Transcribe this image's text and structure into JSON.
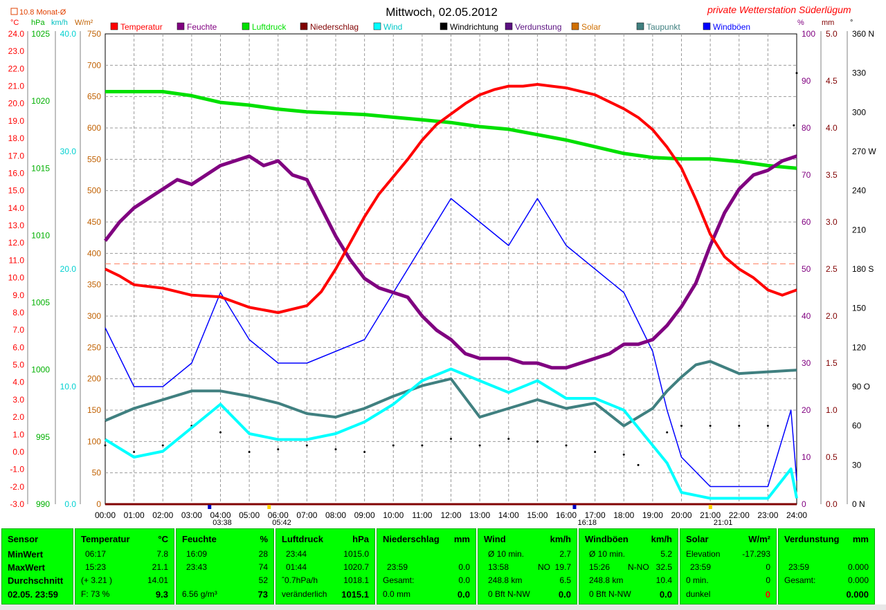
{
  "header": {
    "title": "Mittwoch, 02.05.2012",
    "station": "private Wetterstation Süderlügum",
    "monthly_avg": "10.8 Monat-Ø",
    "left_units": [
      "°C",
      "hPa",
      "km/h",
      "W/m²"
    ],
    "right_units": [
      "%",
      "mm",
      "°"
    ]
  },
  "legend": [
    {
      "label": "Temperatur",
      "color": "#ff0000"
    },
    {
      "label": "Feuchte",
      "color": "#800080"
    },
    {
      "label": "Luftdruck",
      "color": "#00e000"
    },
    {
      "label": "Niederschlag",
      "color": "#800000"
    },
    {
      "label": "Wind",
      "color": "#00ffff"
    },
    {
      "label": "Windrichtung",
      "color": "#000000"
    },
    {
      "label": "Verdunstung",
      "color": "#5a1080"
    },
    {
      "label": "Solar",
      "color": "#d07000"
    },
    {
      "label": "Taupunkt",
      "color": "#408080"
    },
    {
      "label": "Windböen",
      "color": "#0000ff"
    }
  ],
  "axes": {
    "temp_ticks": [
      "24.0",
      "23.0",
      "22.0",
      "21.0",
      "20.0",
      "19.0",
      "18.0",
      "17.0",
      "16.0",
      "15.0",
      "14.0",
      "13.0",
      "12.0",
      "11.0",
      "10.0",
      "9.0",
      "8.0",
      "7.0",
      "6.0",
      "5.0",
      "4.0",
      "3.0",
      "2.0",
      "1.0",
      "0.0",
      "-1.0",
      "-2.0",
      "-3.0"
    ],
    "hpa_ticks": [
      "1025",
      "1020",
      "1015",
      "1010",
      "1005",
      "1000",
      "995",
      "990"
    ],
    "kmh_ticks": [
      "40.0",
      "30.0",
      "20.0",
      "10.0",
      "0.0"
    ],
    "wm2_ticks": [
      "750",
      "700",
      "650",
      "600",
      "550",
      "500",
      "450",
      "400",
      "350",
      "300",
      "250",
      "200",
      "150",
      "100",
      "50",
      "0"
    ],
    "pct_ticks": [
      "100",
      "90",
      "80",
      "70",
      "60",
      "50",
      "40",
      "30",
      "20",
      "10",
      "0"
    ],
    "mm_ticks": [
      "5.0",
      "4.5",
      "4.0",
      "3.5",
      "3.0",
      "2.5",
      "2.0",
      "1.5",
      "1.0",
      "0.5",
      "0.0"
    ],
    "deg_ticks": [
      "360 N",
      "330",
      "300",
      "270 W",
      "240",
      "210",
      "180 S",
      "150",
      "120",
      "90 O",
      "60",
      "30",
      "0 N"
    ],
    "time_ticks": [
      "00:00",
      "01:00",
      "02:00",
      "03:00",
      "04:00",
      "05:00",
      "06:00",
      "07:00",
      "08:00",
      "09:00",
      "10:00",
      "11:00",
      "12:00",
      "13:00",
      "14:00",
      "15:00",
      "16:00",
      "17:00",
      "18:00",
      "19:00",
      "20:00",
      "21:00",
      "22:00",
      "23:00",
      "24:00"
    ],
    "sun_marks": [
      "03:38",
      "05:42",
      "16:18",
      "21:01"
    ]
  },
  "chart_data": {
    "type": "line",
    "x_unit": "hours",
    "xlim": [
      0,
      24
    ],
    "series": [
      {
        "name": "Temperatur",
        "axis": "°C",
        "ylim": [
          -3,
          24
        ],
        "color": "#ff0000",
        "x": [
          0,
          0.5,
          1,
          2,
          3,
          4,
          5,
          6,
          7,
          7.5,
          8,
          8.5,
          9,
          9.5,
          10,
          10.5,
          11,
          11.5,
          12,
          12.5,
          13,
          13.5,
          14,
          14.5,
          15,
          15.5,
          16,
          16.5,
          17,
          17.5,
          18,
          18.5,
          19,
          19.5,
          20,
          20.5,
          21,
          21.5,
          22,
          22.5,
          23,
          23.5,
          24
        ],
        "y": [
          10.5,
          10.1,
          9.6,
          9.4,
          9.0,
          8.9,
          8.3,
          8.0,
          8.4,
          9.2,
          10.5,
          12.0,
          13.5,
          14.8,
          15.8,
          16.8,
          17.9,
          18.8,
          19.4,
          20.0,
          20.5,
          20.8,
          21.0,
          21.0,
          21.1,
          21.0,
          20.9,
          20.7,
          20.5,
          20.1,
          19.7,
          19.2,
          18.5,
          17.5,
          16.3,
          14.5,
          12.5,
          11.2,
          10.5,
          10.0,
          9.3,
          9.0,
          9.3
        ]
      },
      {
        "name": "Feuchte",
        "axis": "%",
        "ylim": [
          0,
          100
        ],
        "color": "#800080",
        "x": [
          0,
          0.5,
          1,
          1.5,
          2,
          2.5,
          3,
          3.5,
          4,
          4.5,
          5,
          5.5,
          6,
          6.5,
          7,
          7.5,
          8,
          8.5,
          9,
          9.5,
          10,
          10.5,
          11,
          11.5,
          12,
          12.5,
          13,
          13.5,
          14,
          14.5,
          15,
          15.5,
          16,
          16.5,
          17,
          17.5,
          18,
          18.5,
          19,
          19.5,
          20,
          20.5,
          21,
          21.5,
          22,
          22.5,
          23,
          23.5,
          24
        ],
        "y": [
          56,
          60,
          63,
          65,
          67,
          69,
          68,
          70,
          72,
          73,
          74,
          72,
          73,
          70,
          69,
          63,
          57,
          52,
          48,
          46,
          45,
          44,
          40,
          37,
          35,
          32,
          31,
          31,
          31,
          30,
          30,
          29,
          29,
          30,
          31,
          32,
          34,
          34,
          35,
          38,
          42,
          47,
          55,
          62,
          67,
          70,
          71,
          73,
          74
        ]
      },
      {
        "name": "Luftdruck",
        "axis": "hPa",
        "ylim": [
          990,
          1025
        ],
        "color": "#00e000",
        "x": [
          0,
          1,
          2,
          3,
          4,
          5,
          6,
          7,
          8,
          9,
          10,
          11,
          12,
          13,
          14,
          15,
          16,
          17,
          18,
          19,
          20,
          21,
          22,
          23,
          24
        ],
        "y": [
          1020.7,
          1020.7,
          1020.7,
          1020.4,
          1019.9,
          1019.7,
          1019.4,
          1019.2,
          1019.1,
          1019.0,
          1018.8,
          1018.6,
          1018.4,
          1018.1,
          1017.9,
          1017.5,
          1017.1,
          1016.6,
          1016.1,
          1015.8,
          1015.7,
          1015.7,
          1015.5,
          1015.2,
          1015.0
        ]
      },
      {
        "name": "Taupunkt",
        "axis": "°C",
        "ylim": [
          -3,
          24
        ],
        "color": "#408080",
        "x": [
          0,
          1,
          2,
          3,
          4,
          5,
          6,
          7,
          8,
          9,
          10,
          11,
          12,
          13,
          14,
          15,
          16,
          17,
          18,
          19,
          19.5,
          20,
          20.5,
          21,
          22,
          23,
          24
        ],
        "y": [
          1.8,
          2.5,
          3.0,
          3.5,
          3.5,
          3.2,
          2.8,
          2.2,
          2.0,
          2.5,
          3.2,
          3.8,
          4.2,
          2.0,
          2.5,
          3.0,
          2.5,
          2.8,
          1.5,
          2.5,
          3.5,
          4.3,
          5.0,
          5.2,
          4.5,
          4.6,
          4.7
        ]
      },
      {
        "name": "Wind",
        "axis": "km/h",
        "ylim": [
          0,
          40
        ],
        "color": "#00ffff",
        "x": [
          0,
          1,
          2,
          3,
          4,
          5,
          6,
          7,
          8,
          9,
          10,
          11,
          12,
          13,
          14,
          15,
          16,
          17,
          18,
          19,
          19.5,
          20,
          21,
          22,
          23,
          23.8,
          24
        ],
        "y": [
          5.5,
          4.0,
          4.5,
          6.5,
          8.5,
          6.0,
          5.5,
          5.5,
          6.0,
          7.0,
          8.5,
          10.5,
          11.5,
          10.5,
          9.5,
          10.5,
          9.0,
          9.0,
          8.0,
          5.0,
          3.5,
          1.0,
          0.5,
          0.5,
          0.5,
          3.0,
          0.5
        ]
      },
      {
        "name": "Windböen",
        "axis": "km/h",
        "ylim": [
          0,
          40
        ],
        "color": "#0000ff",
        "x": [
          0,
          1,
          2,
          3,
          4,
          5,
          6,
          7,
          8,
          9,
          10,
          11,
          12,
          13,
          14,
          15,
          16,
          17,
          18,
          19,
          19.5,
          20,
          21,
          22,
          23,
          23.8,
          24
        ],
        "y": [
          15,
          10,
          10,
          12,
          18,
          14,
          12,
          12,
          13,
          14,
          18,
          22,
          26,
          24,
          22,
          26,
          22,
          20,
          18,
          13,
          8,
          4,
          1.5,
          1.5,
          1.5,
          8,
          2
        ]
      },
      {
        "name": "Windrichtung",
        "axis": "°",
        "ylim": [
          0,
          360
        ],
        "color": "#000000",
        "x": [
          0,
          1,
          2,
          3,
          4,
          5,
          6,
          7,
          8,
          9,
          10,
          11,
          12,
          13,
          14,
          15,
          16,
          17,
          18,
          18.5,
          19.5,
          20,
          21,
          22,
          23,
          23.5,
          23.9,
          24
        ],
        "y": [
          45,
          40,
          45,
          60,
          55,
          40,
          42,
          45,
          42,
          40,
          45,
          45,
          50,
          45,
          50,
          48,
          45,
          40,
          38,
          30,
          55,
          60,
          60,
          60,
          60,
          160,
          290,
          330
        ]
      },
      {
        "name": "Niederschlag",
        "axis": "mm",
        "ylim": [
          0,
          5
        ],
        "color": "#800000",
        "x": [
          0,
          24
        ],
        "y": [
          0,
          0
        ]
      }
    ]
  },
  "panels": {
    "sensor": {
      "h": "Sensor",
      "r1": "MinWert",
      "r2": "MaxWert",
      "r3": "Durchschnitt",
      "r4": "02.05. 23:59"
    },
    "temperature": {
      "h": "Temperatur",
      "u": "°C",
      "min_t": "06:17",
      "min_v": "7.8",
      "max_t": "15:23",
      "max_v": "21.1",
      "avg_d": "(+ 3.21 )",
      "avg_v": "14.01",
      "cur_l": "F: 73 %",
      "cur_v": "9.3"
    },
    "humidity": {
      "h": "Feuchte",
      "u": "%",
      "min_t": "16:09",
      "min_v": "28",
      "max_t": "23:43",
      "max_v": "74",
      "avg_v": "52",
      "cur_l": "6.56 g/m³",
      "cur_v": "73"
    },
    "pressure": {
      "h": "Luftdruck",
      "u": "hPa",
      "min_t": "23:44",
      "min_v": "1015.0",
      "max_t": "01:44",
      "max_v": "1020.7",
      "avg_l": "ˆ0.7hPa/h",
      "avg_v": "1018.1",
      "cur_l": "veränderlich",
      "cur_v": "1015.1"
    },
    "rain": {
      "h": "Niederschlag",
      "u": "mm",
      "max_t": "23:59",
      "max_v": "0.0",
      "avg_l": "Gesamt:",
      "avg_v": "0.0",
      "cur_l": "0.0 mm",
      "cur_v": "0.0"
    },
    "wind": {
      "h": "Wind",
      "u": "km/h",
      "min_t": "Ø 10 min.",
      "min_v": "2.7",
      "max_t": "13:58",
      "max_d": "NO",
      "max_v": "19.7",
      "avg_l": "248.8 km",
      "avg_v": "6.5",
      "cur_l": "0 Bft N-NW",
      "cur_v": "0.0"
    },
    "gust": {
      "h": "Windböen",
      "u": "km/h",
      "min_t": "Ø 10 min.",
      "min_v": "5.2",
      "max_t": "15:26",
      "max_d": "N-NO",
      "max_v": "32.5",
      "avg_l": "248.8 km",
      "avg_v": "10.4",
      "cur_l": "0 Bft N-NW",
      "cur_v": "0.0"
    },
    "solar": {
      "h": "Solar",
      "u": "W/m²",
      "min_t": "Elevation",
      "min_v": "-17.293",
      "max_t": "23:59",
      "max_v": "0",
      "avg_l": "0 min.",
      "avg_v": "0",
      "cur_l": "dunkel",
      "cur_v": "0"
    },
    "evap": {
      "h": "Verdunstung",
      "u": "mm",
      "max_t": "23:59",
      "max_v": "0.000",
      "avg_l": "Gesamt:",
      "avg_v": "0.000",
      "cur_v": "0.000"
    }
  }
}
